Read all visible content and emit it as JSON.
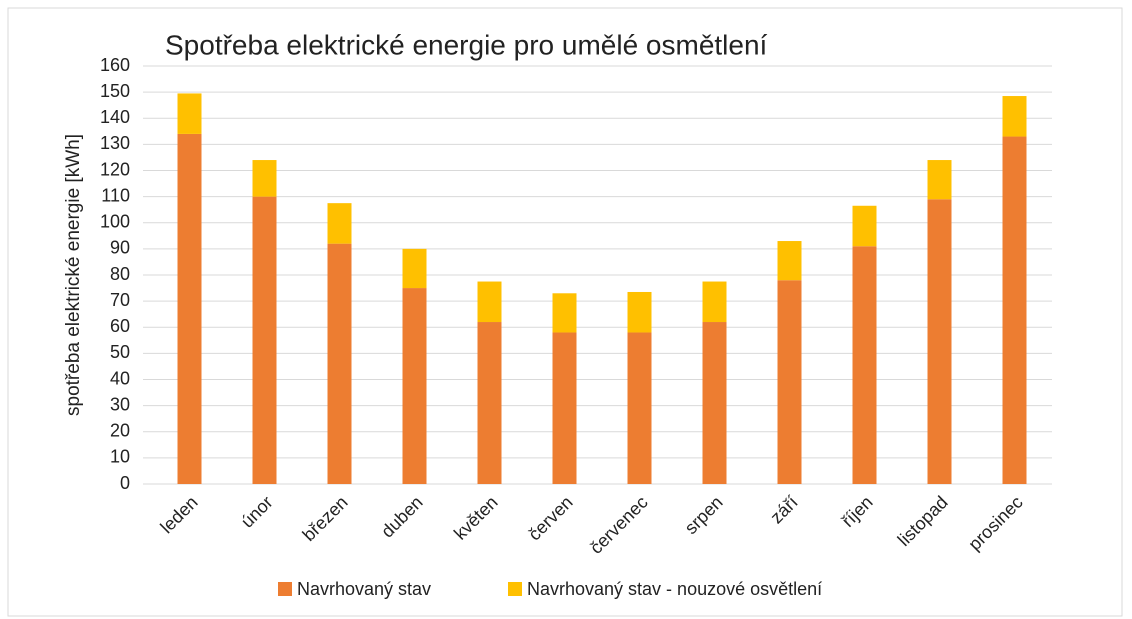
{
  "chart_data": {
    "type": "stacked_bar",
    "title": "Spotřeba elektrické energie pro umělé osmětlení",
    "ylabel": "spotřeba elektrické energie [kWh]",
    "categories": [
      "leden",
      "únor",
      "březen",
      "duben",
      "květen",
      "červen",
      "červenec",
      "srpen",
      "září",
      "říjen",
      "listopad",
      "prosinec"
    ],
    "series": [
      {
        "name": "Navrhovaný stav",
        "color": "#ED7D31",
        "values": [
          134,
          110,
          92,
          75,
          62,
          58,
          58,
          62,
          78,
          91,
          109,
          133
        ]
      },
      {
        "name": "Navrhovaný stav - nouzové osvětlení",
        "color": "#FFC000",
        "values": [
          15.5,
          14,
          15.5,
          15,
          15.5,
          15,
          15.5,
          15.5,
          15,
          15.5,
          15,
          15.5
        ]
      }
    ],
    "ylim": [
      0,
      160
    ],
    "yticks": [
      0,
      10,
      20,
      30,
      40,
      50,
      60,
      70,
      80,
      90,
      100,
      110,
      120,
      130,
      140,
      150,
      160
    ],
    "grid": true,
    "legend": "bottom"
  }
}
